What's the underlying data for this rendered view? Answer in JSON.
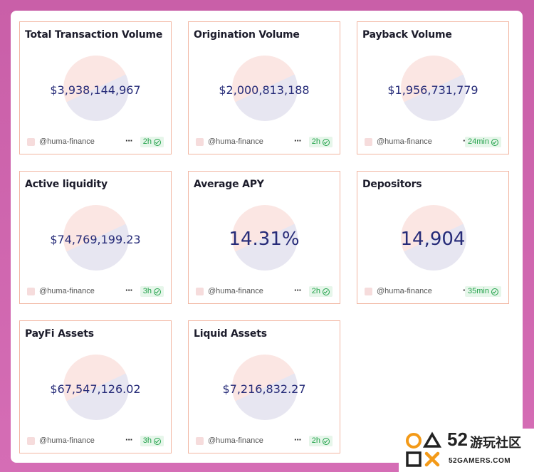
{
  "cards": [
    {
      "title": "Total Transaction Volume",
      "value": "$3,938,144,967",
      "handle": "@huma-finance",
      "more": "···",
      "age": "2h"
    },
    {
      "title": "Origination Volume",
      "value": "$2,000,813,188",
      "handle": "@huma-finance",
      "more": "···",
      "age": "2h"
    },
    {
      "title": "Payback Volume",
      "value": "$1,956,731,779",
      "handle": "@huma-finance",
      "more": "···",
      "age": "24min"
    },
    {
      "title": "Active liquidity",
      "value": "$74,769,199.23",
      "handle": "@huma-finance",
      "more": "···",
      "age": "3h"
    },
    {
      "title": "Average APY",
      "value": "14.31%",
      "handle": "@huma-finance",
      "more": "···",
      "age": "2h"
    },
    {
      "title": "Depositors",
      "value": "14,904",
      "handle": "@huma-finance",
      "more": "···",
      "age": "35min"
    },
    {
      "title": "PayFi Assets",
      "value": "$67,547,126.02",
      "handle": "@huma-finance",
      "more": "···",
      "age": "3h"
    },
    {
      "title": "Liquid Assets",
      "value": "$7,216,832.27",
      "handle": "@huma-finance",
      "more": "···",
      "age": "2h"
    }
  ],
  "watermark": {
    "num": "52",
    "cn": "游玩社区",
    "sub": "52GAMERS.COM"
  },
  "colors": {
    "accent_border": "#f2b6a2",
    "value_text": "#262b78",
    "badge_green": "#22a24a",
    "background": "#d56db5"
  }
}
